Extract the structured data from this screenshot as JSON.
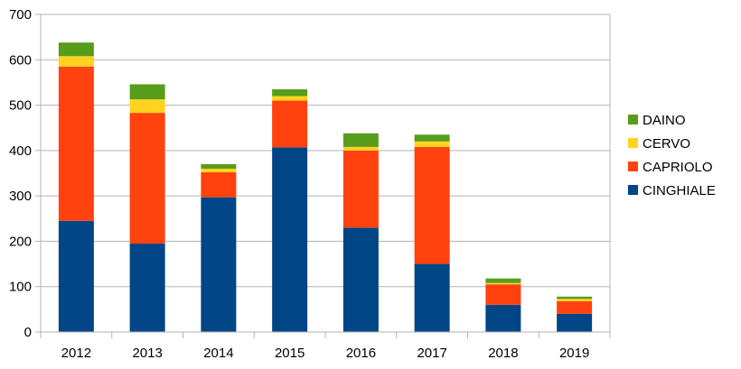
{
  "chart_data": {
    "type": "bar",
    "stacked": true,
    "title": "",
    "xlabel": "",
    "ylabel": "",
    "categories": [
      "2012",
      "2013",
      "2014",
      "2015",
      "2016",
      "2017",
      "2018",
      "2019"
    ],
    "ylim": [
      0,
      700
    ],
    "yticks": [
      "0",
      "100",
      "200",
      "300",
      "400",
      "500",
      "600",
      "700"
    ],
    "grid": true,
    "legend_position": "right",
    "series": [
      {
        "name": "CINGHIALE",
        "color": "#004586",
        "values": [
          245,
          195,
          297,
          407,
          230,
          150,
          60,
          40
        ]
      },
      {
        "name": "CAPRIOLO",
        "color": "#ff420e",
        "values": [
          340,
          288,
          55,
          103,
          170,
          258,
          45,
          28
        ]
      },
      {
        "name": "CERVO",
        "color": "#ffd320",
        "values": [
          23,
          30,
          8,
          10,
          8,
          12,
          3,
          5
        ]
      },
      {
        "name": "DAINO",
        "color": "#579d1c",
        "values": [
          30,
          33,
          10,
          15,
          30,
          15,
          10,
          5
        ]
      }
    ],
    "legend_order": [
      "DAINO",
      "CERVO",
      "CAPRIOLO",
      "CINGHIALE"
    ]
  }
}
